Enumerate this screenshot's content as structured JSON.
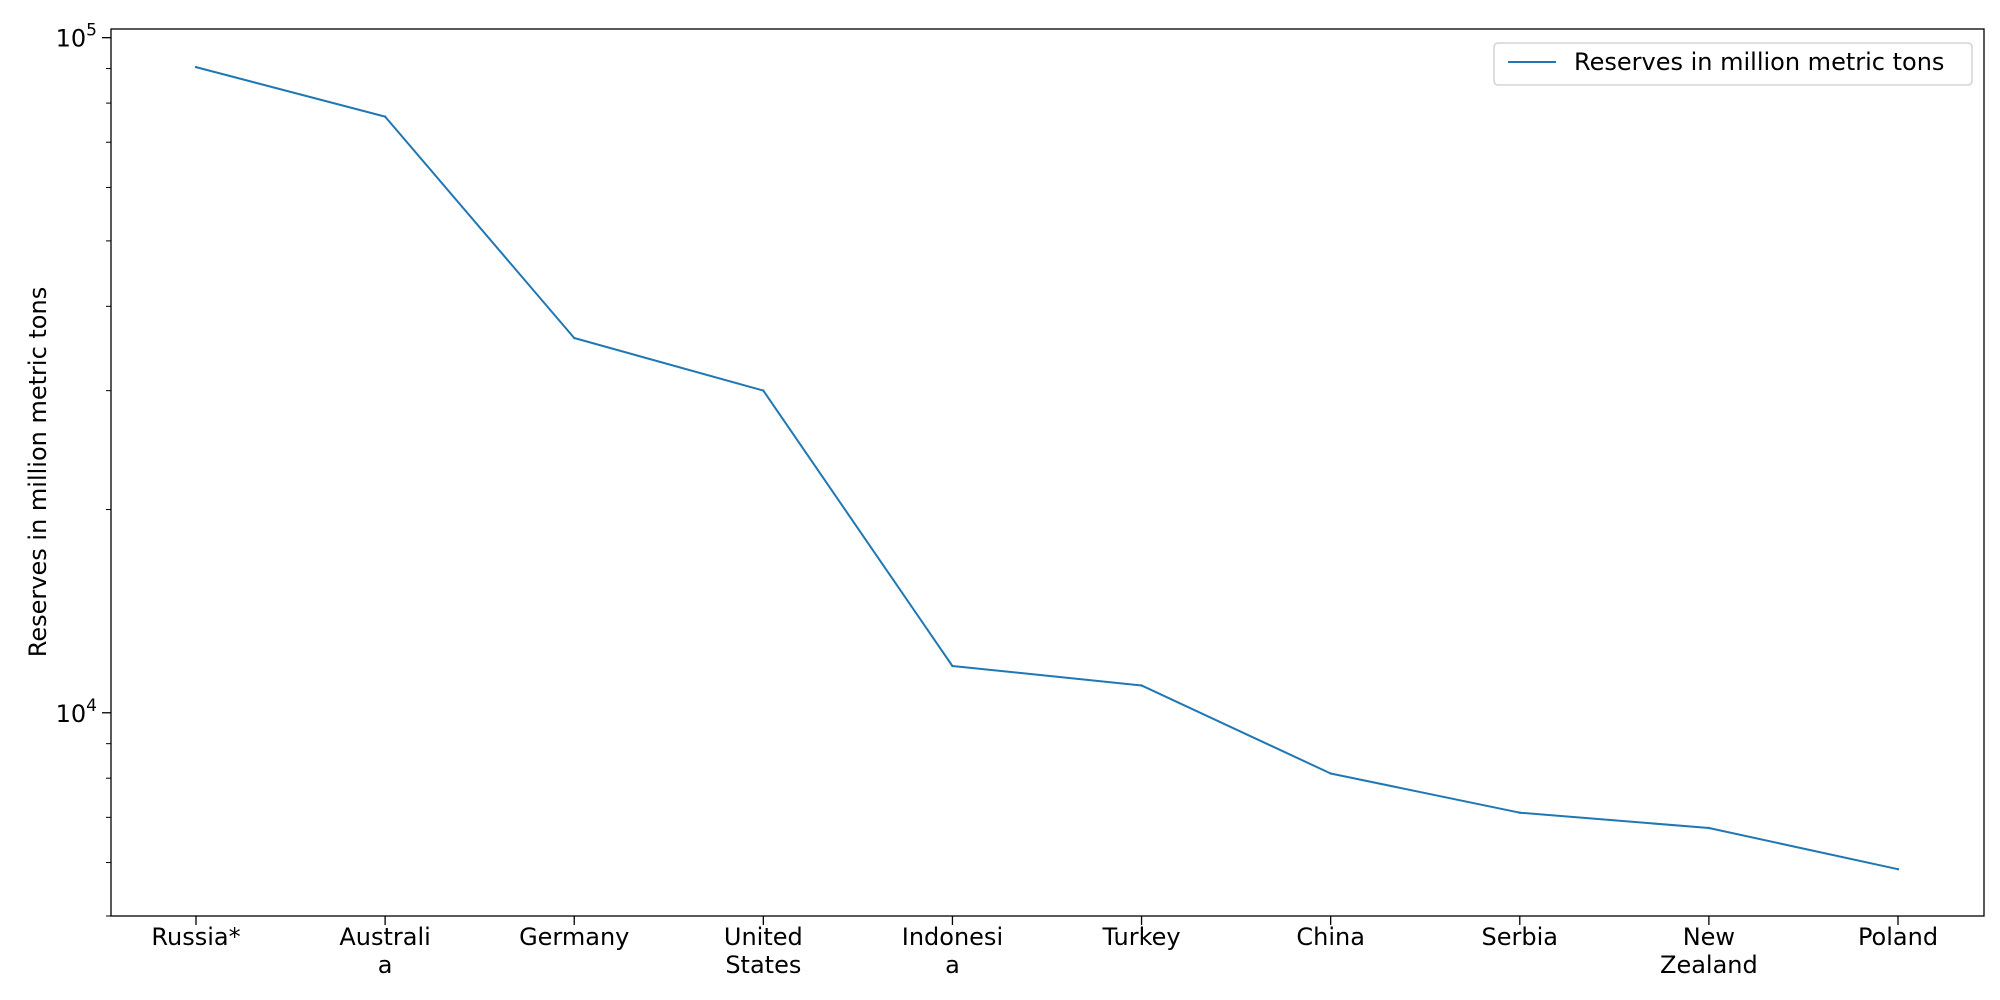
{
  "chart_data": {
    "type": "line",
    "categories": [
      "Russia*",
      "Australia",
      "Germany",
      "United States",
      "Indonesia",
      "Turkey",
      "China",
      "Serbia",
      "New Zealand",
      "Poland"
    ],
    "category_tick_lines": [
      [
        "Russia*"
      ],
      [
        "Australi",
        "a"
      ],
      [
        "Germany"
      ],
      [
        "United",
        "States"
      ],
      [
        "Indonesi",
        "a"
      ],
      [
        "Turkey"
      ],
      [
        "China"
      ],
      [
        "Serbia"
      ],
      [
        "New",
        "Zealand"
      ],
      [
        "Poland"
      ]
    ],
    "series": [
      {
        "name": "Reserves in million metric tons",
        "color": "#1f77b4",
        "values": [
          90447,
          76400,
          35900,
          30003,
          11728,
          10975,
          8128,
          7112,
          6750,
          5865
        ]
      }
    ],
    "ylabel": "Reserves in million metric tons",
    "xlabel": "",
    "yscale": "log",
    "ylim": [
      5000,
      103000
    ],
    "y_major_ticks": [
      10000,
      100000
    ],
    "y_minor_ticks": [
      5000,
      6000,
      7000,
      8000,
      9000,
      20000,
      30000,
      40000,
      50000,
      60000,
      70000,
      80000,
      90000
    ],
    "legend_position": "top-right",
    "grid": false
  }
}
